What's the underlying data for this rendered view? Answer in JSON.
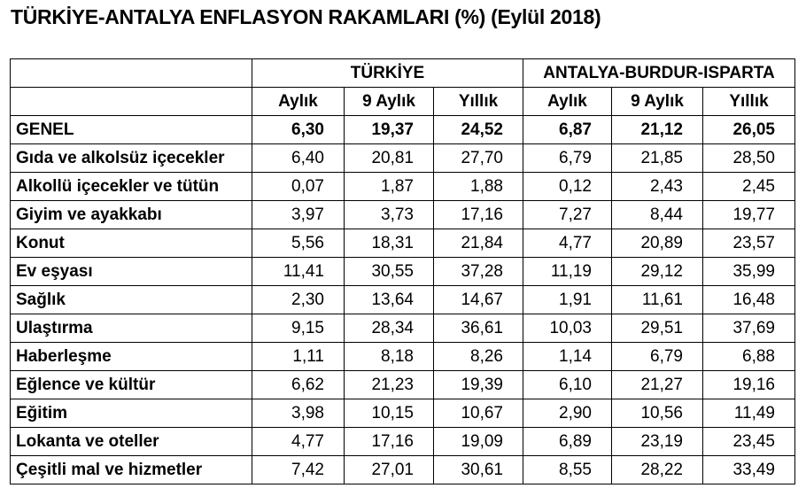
{
  "header": {
    "title": "TÜRKİYE-ANTALYA ENFLASYON RAKAMLARI (%) (Eylül 2018)"
  },
  "table": {
    "groups": [
      "TÜRKİYE",
      "ANTALYA-BURDUR-ISPARTA"
    ],
    "columns": [
      "Aylık",
      "9  Aylık",
      "Yıllık",
      "Aylık",
      "9 Aylık",
      "Yıllık"
    ],
    "rows": [
      [
        "GENEL",
        "6,30",
        "19,37",
        "24,52",
        "6,87",
        "21,12",
        "26,05"
      ],
      [
        "Gıda ve alkolsüz içecekler",
        "6,40",
        "20,81",
        "27,70",
        "6,79",
        "21,85",
        "28,50"
      ],
      [
        "Alkollü içecekler ve tütün",
        "0,07",
        "1,87",
        "1,88",
        "0,12",
        "2,43",
        "2,45"
      ],
      [
        "Giyim ve ayakkabı",
        "3,97",
        "3,73",
        "17,16",
        "7,27",
        "8,44",
        "19,77"
      ],
      [
        "Konut",
        "5,56",
        "18,31",
        "21,84",
        "4,77",
        "20,89",
        "23,57"
      ],
      [
        "Ev eşyası",
        "11,41",
        "30,55",
        "37,28",
        "11,19",
        "29,12",
        "35,99"
      ],
      [
        "Sağlık",
        "2,30",
        "13,64",
        "14,67",
        "1,91",
        "11,61",
        "16,48"
      ],
      [
        "Ulaştırma",
        "9,15",
        "28,34",
        "36,61",
        "10,03",
        "29,51",
        "37,69"
      ],
      [
        "Haberleşme",
        "1,11",
        "8,18",
        "8,26",
        "1,14",
        "6,79",
        "6,88"
      ],
      [
        "Eğlence ve kültür",
        "6,62",
        "21,23",
        "19,39",
        "6,10",
        "21,27",
        "19,16"
      ],
      [
        "Eğitim",
        "3,98",
        "10,15",
        "10,67",
        "2,90",
        "10,56",
        "11,49"
      ],
      [
        "Lokanta ve oteller",
        "4,77",
        "17,16",
        "19,09",
        "6,89",
        "23,19",
        "23,45"
      ],
      [
        "Çeşitli mal ve hizmetler",
        "7,42",
        "27,01",
        "30,61",
        "8,55",
        "28,22",
        "33,49"
      ]
    ]
  }
}
